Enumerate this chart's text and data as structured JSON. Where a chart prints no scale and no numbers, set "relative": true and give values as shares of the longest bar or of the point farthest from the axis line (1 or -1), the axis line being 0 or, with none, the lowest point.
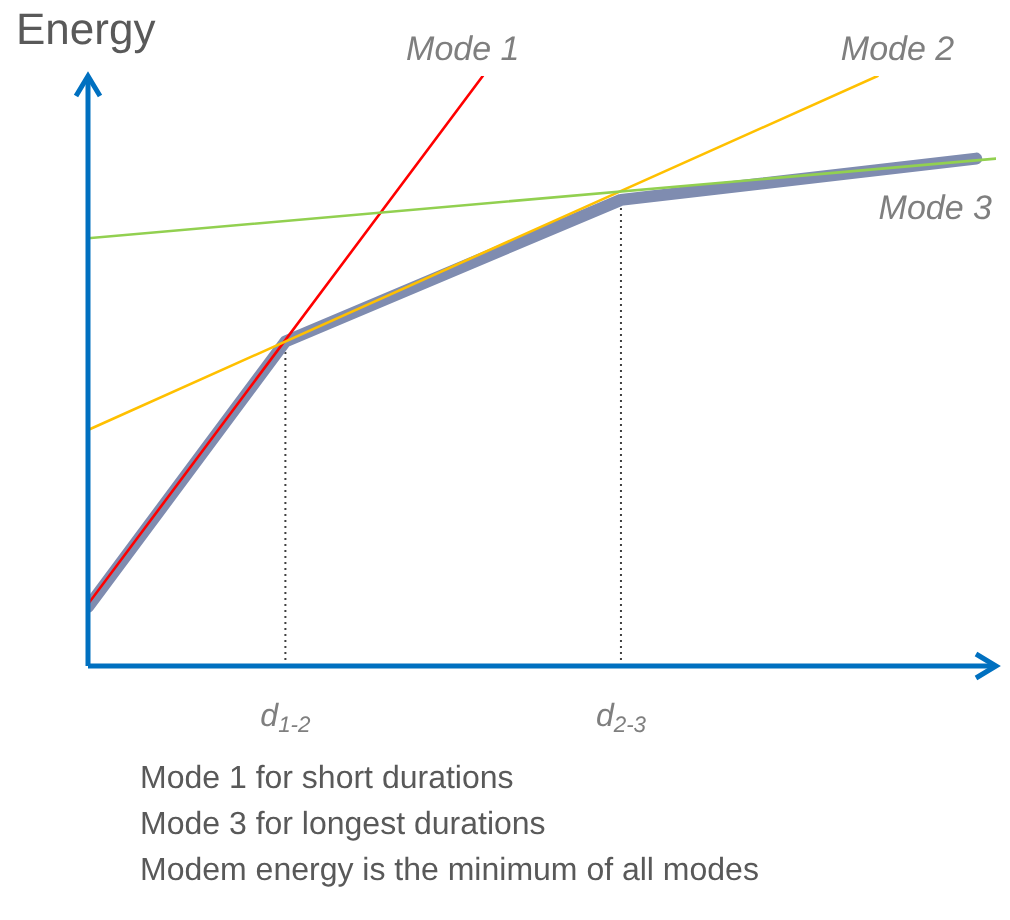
{
  "chart_data": {
    "type": "line",
    "relative": true,
    "ylabel": "Energy",
    "legend": false,
    "categories": [
      null,
      null,
      null,
      null,
      null,
      null,
      null,
      null,
      null,
      null,
      "d$_{1-2}$",
      null,
      null,
      null,
      null,
      null,
      null,
      null,
      null,
      null,
      null,
      null,
      null,
      null,
      null,
      null,
      null,
      "d$_{2-3}$",
      null,
      null,
      null,
      null,
      null,
      null,
      null,
      null,
      null,
      null,
      null,
      null,
      null,
      null,
      null,
      null,
      null,
      null,
      null
    ],
    "series": [
      {
        "name": "Mode 1",
        "color": "#ff0000",
        "values": [
          0.105,
          null,
          null,
          null,
          null,
          null,
          null,
          null,
          null,
          null,
          null,
          null,
          null,
          null,
          null,
          null,
          null,
          null,
          null,
          null,
          1.0,
          null,
          null,
          null,
          null,
          null,
          null,
          null,
          null,
          null,
          null,
          null,
          null,
          null,
          null,
          null,
          null,
          null,
          null,
          null,
          null,
          null,
          null,
          null,
          null,
          null,
          null
        ]
      },
      {
        "name": "Mode 2",
        "color": "#ffc000",
        "values": [
          0.4,
          null,
          null,
          null,
          null,
          null,
          null,
          null,
          null,
          null,
          null,
          null,
          null,
          null,
          null,
          null,
          null,
          null,
          null,
          null,
          null,
          null,
          null,
          null,
          null,
          null,
          null,
          null,
          null,
          null,
          null,
          null,
          null,
          null,
          null,
          null,
          null,
          null,
          null,
          null,
          1.0,
          null,
          null,
          null,
          null,
          null,
          null
        ]
      },
      {
        "name": "Mode 3",
        "color": "#92d050",
        "values": [
          0.725,
          null,
          null,
          null,
          null,
          null,
          null,
          null,
          null,
          null,
          null,
          null,
          null,
          null,
          null,
          null,
          null,
          null,
          null,
          null,
          null,
          null,
          null,
          null,
          null,
          null,
          null,
          null,
          null,
          null,
          null,
          null,
          null,
          null,
          null,
          null,
          null,
          null,
          null,
          null,
          null,
          null,
          null,
          null,
          null,
          null,
          0.86
        ]
      },
      {
        "color": "#7f8cb0",
        "values": [
          0.1,
          null,
          null,
          null,
          null,
          null,
          null,
          null,
          null,
          null,
          0.55,
          null,
          null,
          null,
          null,
          null,
          null,
          null,
          null,
          null,
          null,
          null,
          null,
          null,
          null,
          null,
          null,
          0.79,
          null,
          null,
          null,
          null,
          null,
          null,
          null,
          null,
          null,
          null,
          null,
          null,
          null,
          null,
          null,
          null,
          null,
          0.86,
          null
        ]
      }
    ],
    "ref_lines": [
      {
        "axis": "x",
        "value": "d$_{1-2}$",
        "color": "#404040",
        "line_style": "dotted"
      },
      {
        "axis": "x",
        "value": "d$_{2-3}$",
        "color": "#404040",
        "line_style": "dotted"
      }
    ],
    "annotations": [
      "Mode 1 for short durations",
      "Mode 3 for longest durations",
      "Modem energy is the minimum of all modes"
    ]
  }
}
